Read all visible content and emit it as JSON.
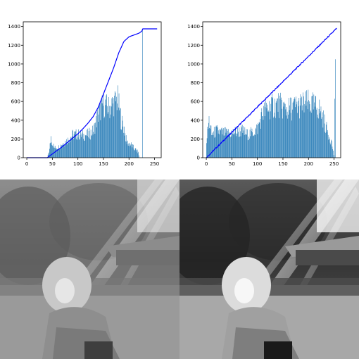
{
  "chart_data": [
    {
      "type": "bar",
      "xlim": [
        -7,
        263
      ],
      "ylim": [
        0,
        1450
      ],
      "xticks": [
        "0",
        "50",
        "100",
        "150",
        "200",
        "250"
      ],
      "yticks": [
        "0",
        "200",
        "400",
        "600",
        "800",
        "1000",
        "1200",
        "1400"
      ],
      "bar_color": "#1f77b4",
      "line_color": "#0000ff",
      "histogram_profile": [
        [
          0,
          0
        ],
        [
          38,
          0
        ],
        [
          40,
          5
        ],
        [
          44,
          90
        ],
        [
          47,
          240
        ],
        [
          50,
          150
        ],
        [
          55,
          110
        ],
        [
          62,
          120
        ],
        [
          70,
          160
        ],
        [
          80,
          200
        ],
        [
          90,
          260
        ],
        [
          100,
          260
        ],
        [
          110,
          250
        ],
        [
          120,
          260
        ],
        [
          130,
          300
        ],
        [
          140,
          500
        ],
        [
          150,
          600
        ],
        [
          160,
          560
        ],
        [
          170,
          620
        ],
        [
          178,
          650
        ],
        [
          185,
          400
        ],
        [
          190,
          330
        ],
        [
          195,
          170
        ],
        [
          200,
          160
        ],
        [
          205,
          140
        ],
        [
          210,
          100
        ],
        [
          215,
          80
        ],
        [
          218,
          55
        ],
        [
          220,
          0
        ],
        [
          225,
          0
        ],
        [
          226,
          190
        ],
        [
          227,
          0
        ],
        [
          255,
          0
        ]
      ],
      "cdf": [
        [
          0,
          0
        ],
        [
          40,
          0
        ],
        [
          50,
          40
        ],
        [
          60,
          80
        ],
        [
          70,
          120
        ],
        [
          80,
          165
        ],
        [
          90,
          210
        ],
        [
          100,
          255
        ],
        [
          110,
          310
        ],
        [
          120,
          370
        ],
        [
          130,
          440
        ],
        [
          140,
          540
        ],
        [
          150,
          680
        ],
        [
          160,
          820
        ],
        [
          170,
          960
        ],
        [
          180,
          1120
        ],
        [
          190,
          1240
        ],
        [
          200,
          1290
        ],
        [
          210,
          1310
        ],
        [
          220,
          1330
        ],
        [
          225,
          1350
        ],
        [
          227,
          1375
        ],
        [
          255,
          1375
        ]
      ],
      "spike": {
        "x": 226,
        "y": 1375
      }
    },
    {
      "type": "bar",
      "xlim": [
        -7,
        263
      ],
      "ylim": [
        0,
        1450
      ],
      "xticks": [
        "0",
        "50",
        "100",
        "150",
        "200",
        "250"
      ],
      "yticks": [
        "0",
        "200",
        "400",
        "600",
        "800",
        "1000",
        "1200",
        "1400"
      ],
      "bar_color": "#1f77b4",
      "line_color": "#0000ff",
      "histogram_profile": [
        [
          0,
          200
        ],
        [
          5,
          420
        ],
        [
          10,
          260
        ],
        [
          20,
          300
        ],
        [
          30,
          280
        ],
        [
          40,
          270
        ],
        [
          50,
          280
        ],
        [
          60,
          290
        ],
        [
          70,
          300
        ],
        [
          80,
          260
        ],
        [
          90,
          280
        ],
        [
          100,
          330
        ],
        [
          110,
          500
        ],
        [
          120,
          560
        ],
        [
          130,
          580
        ],
        [
          140,
          600
        ],
        [
          150,
          560
        ],
        [
          160,
          540
        ],
        [
          170,
          570
        ],
        [
          180,
          580
        ],
        [
          190,
          600
        ],
        [
          200,
          610
        ],
        [
          210,
          580
        ],
        [
          220,
          560
        ],
        [
          230,
          420
        ],
        [
          235,
          320
        ],
        [
          240,
          250
        ],
        [
          245,
          170
        ],
        [
          250,
          0
        ],
        [
          252,
          1050
        ],
        [
          253,
          0
        ],
        [
          255,
          0
        ]
      ],
      "cdf": [
        [
          0,
          0
        ],
        [
          255,
          1380
        ]
      ],
      "spike": {
        "x": 252,
        "y": 1050
      }
    }
  ],
  "images": [
    {
      "name": "original-grayscale-photo",
      "palette": "grayscale"
    },
    {
      "name": "equalized-grayscale-photo",
      "palette": "grayscale"
    }
  ]
}
